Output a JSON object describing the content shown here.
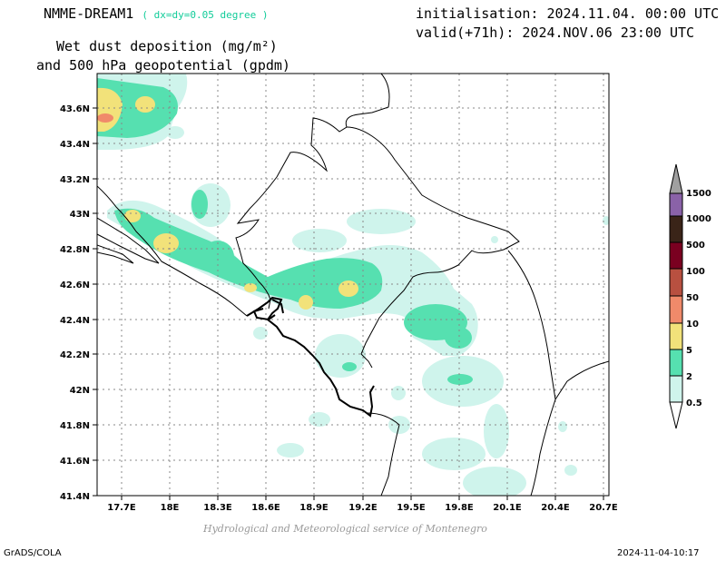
{
  "header": {
    "model": "NMME-DREAM1",
    "resolution": "( dx=dy=0.05 degree )",
    "init": "initialisation: 2024.11.04. 00:00 UTC",
    "valid": "valid(+71h): 2024.NOV.06 23:00 UTC",
    "desc_line1": "Wet dust deposition (mg/m²)",
    "desc_line2": "and 500 hPa geopotential (gpdm)"
  },
  "axes": {
    "lat_labels": [
      "43.6N",
      "43.4N",
      "43.2N",
      "43N",
      "42.8N",
      "42.6N",
      "42.4N",
      "42.2N",
      "42N",
      "41.8N",
      "41.6N",
      "41.4N"
    ],
    "lon_labels": [
      "17.7E",
      "18E",
      "18.3E",
      "18.6E",
      "18.9E",
      "19.2E",
      "19.5E",
      "19.8E",
      "20.1E",
      "20.4E",
      "20.7E"
    ]
  },
  "legend": {
    "labels": [
      "1500",
      "1000",
      "500",
      "100",
      "50",
      "10",
      "5",
      "2",
      "0.5"
    ],
    "colors": [
      "#a0a0a0",
      "#8a62a8",
      "#3a2418",
      "#7a0020",
      "#b85040",
      "#f08a6a",
      "#f2e27a",
      "#56e0b0",
      "#cff4ec"
    ]
  },
  "footer": {
    "credit": "Hydrological and Meteorological service of Montenegro",
    "software": "GrADS/COLA",
    "timestamp": "2024-11-04-10:17"
  }
}
